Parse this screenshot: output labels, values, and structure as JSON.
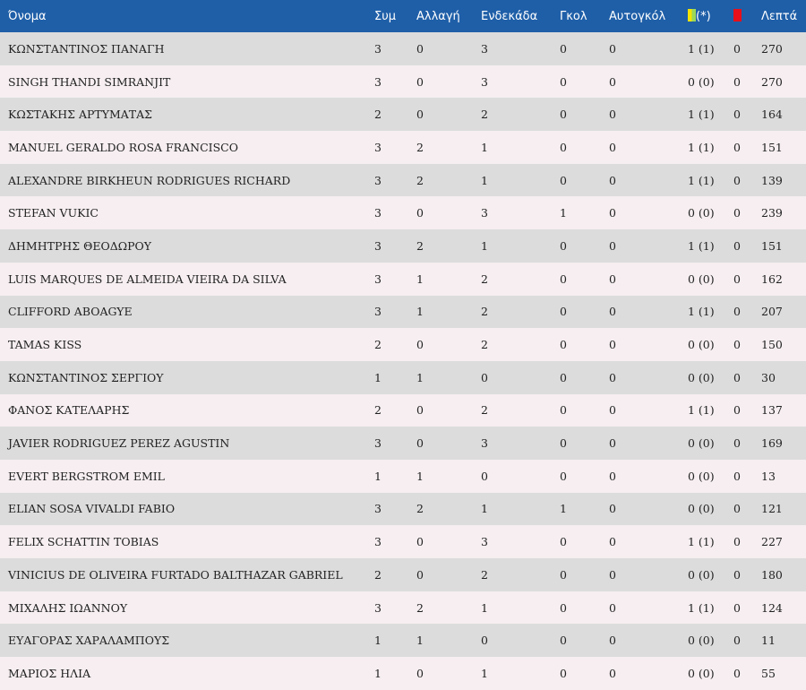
{
  "colors": {
    "header_bg": "#1f5fa8",
    "row_odd": "#dcdcdc",
    "row_even": "#f6eef0",
    "yellow_card": "#f4e400",
    "red_card": "#e8101a"
  },
  "headers": {
    "name": "Όνομα",
    "apps": "Συμ",
    "sub": "Αλλαγή",
    "lineup": "Ενδεκάδα",
    "goals": "Γκολ",
    "own_goals": "Αυτογκόλ",
    "yellow_note": "(*)",
    "minutes": "Λεπτά"
  },
  "icons": {
    "yellow": "yellow-card-icon",
    "red": "red-card-icon"
  },
  "players": [
    {
      "name": "ΚΩΝΣΤΑΝΤΙΝΟΣ ΠΑΝΑΓΗ",
      "apps": "3",
      "sub": "0",
      "lineup": "3",
      "goals": "0",
      "own": "0",
      "yellow": "1 (1)",
      "red": "0",
      "min": "270"
    },
    {
      "name": "SINGH THANDI SIMRANJIT",
      "apps": "3",
      "sub": "0",
      "lineup": "3",
      "goals": "0",
      "own": "0",
      "yellow": "0 (0)",
      "red": "0",
      "min": "270"
    },
    {
      "name": "ΚΩΣΤΑΚΗΣ ΑΡΤΥΜΑΤΑΣ",
      "apps": "2",
      "sub": "0",
      "lineup": "2",
      "goals": "0",
      "own": "0",
      "yellow": "1 (1)",
      "red": "0",
      "min": "164"
    },
    {
      "name": "MANUEL GERALDO ROSA FRANCISCO",
      "apps": "3",
      "sub": "2",
      "lineup": "1",
      "goals": "0",
      "own": "0",
      "yellow": "1 (1)",
      "red": "0",
      "min": "151"
    },
    {
      "name": "ALEXANDRE BIRKHEUN RODRIGUES RICHARD",
      "apps": "3",
      "sub": "2",
      "lineup": "1",
      "goals": "0",
      "own": "0",
      "yellow": "1 (1)",
      "red": "0",
      "min": "139"
    },
    {
      "name": "STEFAN VUKIC",
      "apps": "3",
      "sub": "0",
      "lineup": "3",
      "goals": "1",
      "own": "0",
      "yellow": "0 (0)",
      "red": "0",
      "min": "239"
    },
    {
      "name": "ΔΗΜΗΤΡΗΣ ΘΕΟΔΩΡΟΥ",
      "apps": "3",
      "sub": "2",
      "lineup": "1",
      "goals": "0",
      "own": "0",
      "yellow": "1 (1)",
      "red": "0",
      "min": "151"
    },
    {
      "name": "LUIS MARQUES DE ALMEIDA VIEIRA DA SILVA",
      "apps": "3",
      "sub": "1",
      "lineup": "2",
      "goals": "0",
      "own": "0",
      "yellow": "0 (0)",
      "red": "0",
      "min": "162"
    },
    {
      "name": "CLIFFORD ABOAGYE",
      "apps": "3",
      "sub": "1",
      "lineup": "2",
      "goals": "0",
      "own": "0",
      "yellow": "1 (1)",
      "red": "0",
      "min": "207"
    },
    {
      "name": "TAMAS KISS",
      "apps": "2",
      "sub": "0",
      "lineup": "2",
      "goals": "0",
      "own": "0",
      "yellow": "0 (0)",
      "red": "0",
      "min": "150"
    },
    {
      "name": "ΚΩΝΣΤΑΝΤΙΝΟΣ ΣΕΡΓΙΟΥ",
      "apps": "1",
      "sub": "1",
      "lineup": "0",
      "goals": "0",
      "own": "0",
      "yellow": "0 (0)",
      "red": "0",
      "min": "30"
    },
    {
      "name": "ΦΑΝΟΣ ΚΑΤΕΛΑΡΗΣ",
      "apps": "2",
      "sub": "0",
      "lineup": "2",
      "goals": "0",
      "own": "0",
      "yellow": "1 (1)",
      "red": "0",
      "min": "137"
    },
    {
      "name": "JAVIER RODRIGUEZ PEREZ AGUSTIN",
      "apps": "3",
      "sub": "0",
      "lineup": "3",
      "goals": "0",
      "own": "0",
      "yellow": "0 (0)",
      "red": "0",
      "min": "169"
    },
    {
      "name": "EVERT BERGSTROM EMIL",
      "apps": "1",
      "sub": "1",
      "lineup": "0",
      "goals": "0",
      "own": "0",
      "yellow": "0 (0)",
      "red": "0",
      "min": "13"
    },
    {
      "name": "ELIAN SOSA VIVALDI FABIO",
      "apps": "3",
      "sub": "2",
      "lineup": "1",
      "goals": "1",
      "own": "0",
      "yellow": "0 (0)",
      "red": "0",
      "min": "121"
    },
    {
      "name": "FELIX SCHATTIN TOBIAS",
      "apps": "3",
      "sub": "0",
      "lineup": "3",
      "goals": "0",
      "own": "0",
      "yellow": "1 (1)",
      "red": "0",
      "min": "227"
    },
    {
      "name": "VINICIUS DE OLIVEIRA FURTADO BALTHAZAR GABRIEL",
      "apps": "2",
      "sub": "0",
      "lineup": "2",
      "goals": "0",
      "own": "0",
      "yellow": "0 (0)",
      "red": "0",
      "min": "180"
    },
    {
      "name": "ΜΙΧΑΛΗΣ ΙΩΑΝΝΟΥ",
      "apps": "3",
      "sub": "2",
      "lineup": "1",
      "goals": "0",
      "own": "0",
      "yellow": "1 (1)",
      "red": "0",
      "min": "124"
    },
    {
      "name": "ΕΥΑΓΟΡΑΣ ΧΑΡΑΛΑΜΠΟΥΣ",
      "apps": "1",
      "sub": "1",
      "lineup": "0",
      "goals": "0",
      "own": "0",
      "yellow": "0 (0)",
      "red": "0",
      "min": "11"
    },
    {
      "name": "ΜΑΡΙΟΣ ΗΛΙΑ",
      "apps": "1",
      "sub": "0",
      "lineup": "1",
      "goals": "0",
      "own": "0",
      "yellow": "0 (0)",
      "red": "0",
      "min": "55"
    }
  ]
}
